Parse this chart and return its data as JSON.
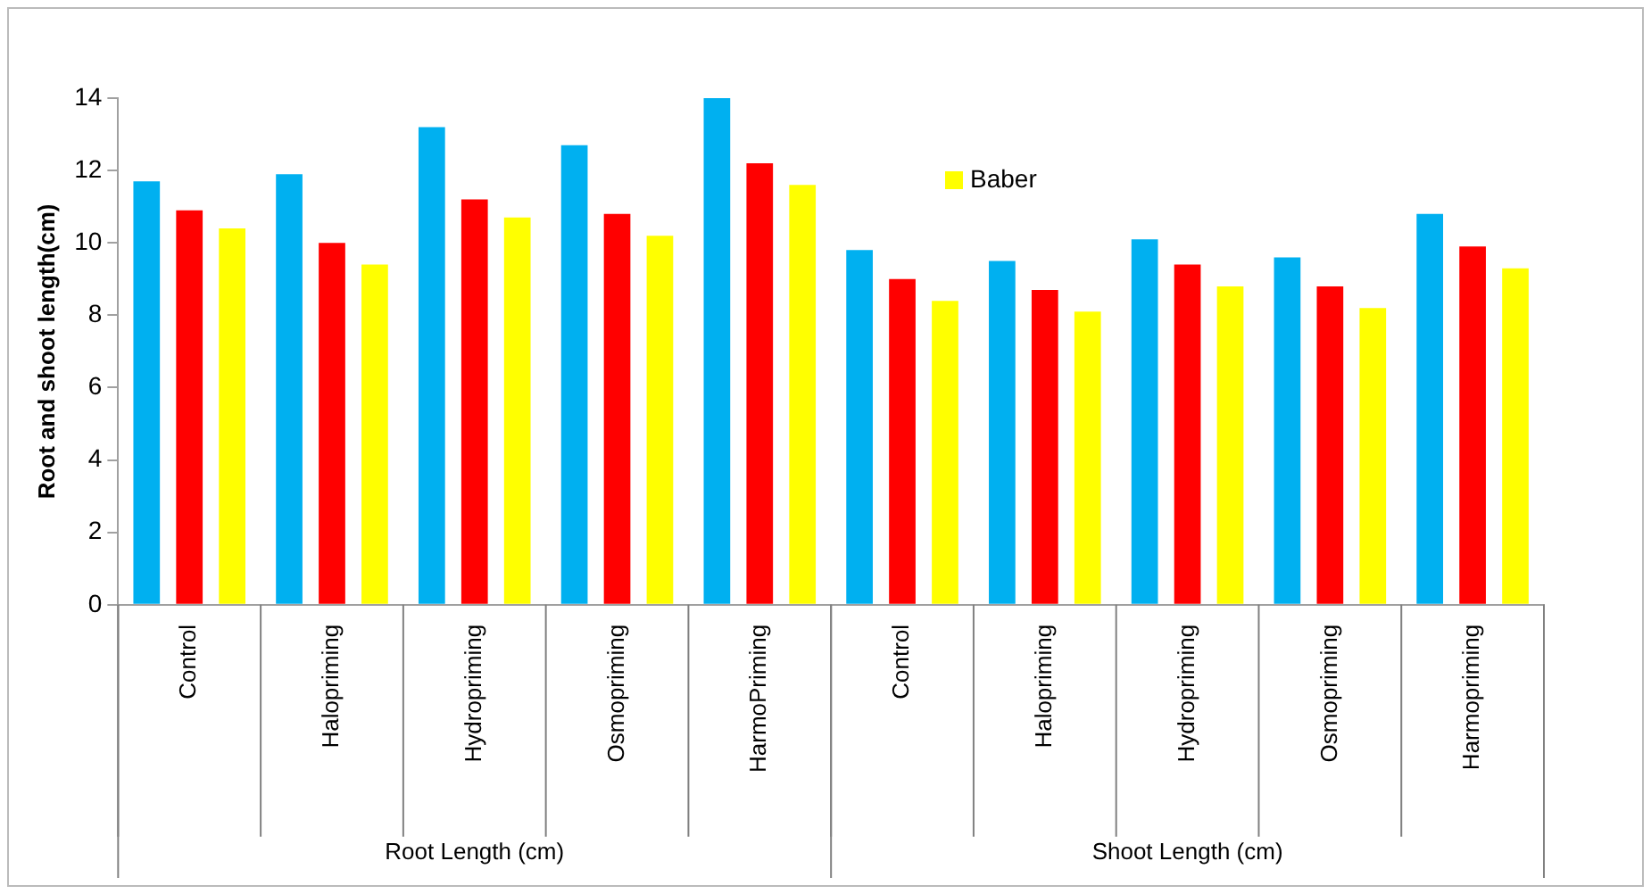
{
  "chart_data": {
    "type": "bar",
    "ylabel": "Root and shoot length(cm)",
    "categories": [
      "Control",
      "Halopriming",
      "Hydropriming",
      "Osmopriming",
      "HarmoPriming",
      "Control",
      "Halopriming",
      "Hydropriming",
      "Osmopriming",
      "Harmopriming"
    ],
    "series": [
      {
        "color": "#00b0f0",
        "values": [
          11.7,
          11.9,
          13.2,
          12.7,
          14.0,
          9.8,
          9.5,
          10.1,
          9.6,
          10.8
        ]
      },
      {
        "color": "#ff0000",
        "values": [
          10.9,
          10.0,
          11.2,
          10.8,
          12.2,
          9.0,
          8.7,
          9.4,
          8.8,
          9.9
        ]
      },
      {
        "name": "Baber",
        "color": "#ffff00",
        "values": [
          10.4,
          9.4,
          10.7,
          10.2,
          11.6,
          8.4,
          8.1,
          8.8,
          8.2,
          9.3
        ]
      }
    ],
    "ylim": [
      0,
      14
    ],
    "yticks": [
      0,
      2,
      4,
      6,
      8,
      10,
      12,
      14
    ],
    "grid": false,
    "legend": "top right",
    "annotations": [
      "Root Length (cm)",
      "Shoot Length (cm)"
    ]
  }
}
